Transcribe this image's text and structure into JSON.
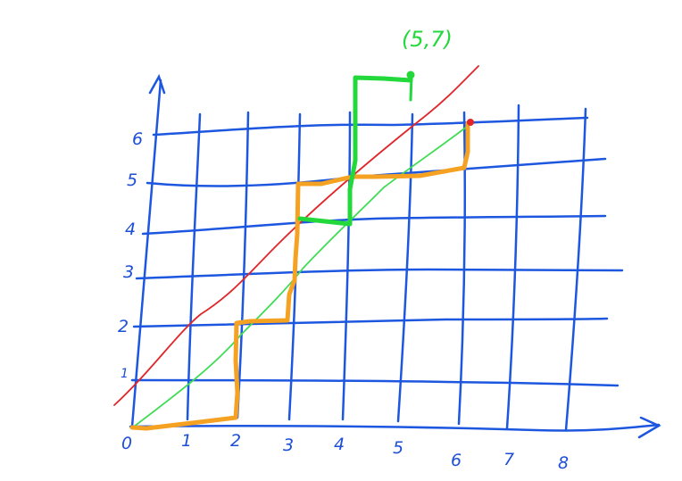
{
  "annotation": "(5,7)",
  "x_tick_labels": [
    "0",
    "1",
    "2",
    "3",
    "4",
    "5",
    "6",
    "7",
    "8"
  ],
  "y_tick_labels": [
    "1",
    "2",
    "3",
    "4",
    "5",
    "6"
  ],
  "colors": {
    "grid": "#1d57e0",
    "red_diagonal": "#e0262b",
    "green_diagonal": "#3fdc55",
    "orange_path": "#f5a122",
    "green_path": "#22d83a",
    "endpoint_dot": "#e0262b"
  }
}
